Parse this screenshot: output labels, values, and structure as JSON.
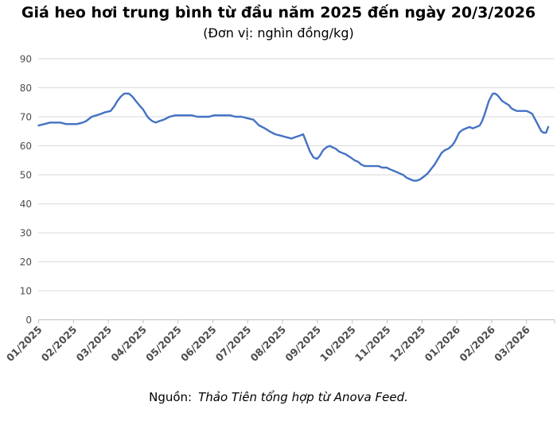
{
  "title": "Giá heo hơi trung bình từ đầu năm 2025 đến ngày 20/3/2026",
  "subtitle": "(Đơn vị: nghìn đồng/kg)",
  "source": {
    "prefix": "Nguồn:",
    "text": "Thảo Tiên tổng hợp từ Anova Feed."
  },
  "chart_data": {
    "type": "line",
    "series_name": "Giá heo hơi trung bình",
    "unit": "nghìn đồng/kg",
    "title": "Giá heo hơi trung bình từ đầu năm 2025 đến ngày 20/3/2026",
    "ylim": [
      0,
      90
    ],
    "grid": "horizontal",
    "legend": "none",
    "y_ticks": [
      0,
      10,
      20,
      30,
      40,
      50,
      60,
      70,
      80,
      90
    ],
    "x_tick_labels": [
      "01/2025",
      "02/2025",
      "03/2025",
      "04/2025",
      "05/2025",
      "06/2025",
      "07/2025",
      "08/2025",
      "09/2025",
      "10/2025",
      "11/2025",
      "12/2025",
      "01/2026",
      "02/2026",
      "03/2026"
    ],
    "line_color": "#4472C4",
    "gridline_color": "#D9D9D9",
    "axis_color": "#BFBFBF",
    "label_color": "#4d4d4d",
    "points": [
      [
        "2025-01-01",
        67
      ],
      [
        "2025-01-06",
        67.5
      ],
      [
        "2025-01-11",
        68
      ],
      [
        "2025-01-16",
        68
      ],
      [
        "2025-01-20",
        68
      ],
      [
        "2025-01-25",
        67.5
      ],
      [
        "2025-01-30",
        67.5
      ],
      [
        "2025-02-04",
        67.5
      ],
      [
        "2025-02-09",
        68
      ],
      [
        "2025-02-12",
        68.5
      ],
      [
        "2025-02-17",
        70
      ],
      [
        "2025-02-21",
        70.5
      ],
      [
        "2025-02-25",
        71
      ],
      [
        "2025-02-28",
        71.5
      ],
      [
        "2025-03-03",
        72
      ],
      [
        "2025-03-06",
        73.5
      ],
      [
        "2025-03-09",
        75.5
      ],
      [
        "2025-03-12",
        77
      ],
      [
        "2025-03-15",
        78
      ],
      [
        "2025-03-19",
        78
      ],
      [
        "2025-03-22",
        77
      ],
      [
        "2025-03-25",
        75.5
      ],
      [
        "2025-03-28",
        74
      ],
      [
        "2025-04-01",
        72.5
      ],
      [
        "2025-04-04",
        70.5
      ],
      [
        "2025-04-06",
        69.5
      ],
      [
        "2025-04-09",
        68.5
      ],
      [
        "2025-04-12",
        68
      ],
      [
        "2025-04-15",
        68.5
      ],
      [
        "2025-04-19",
        69
      ],
      [
        "2025-04-24",
        70
      ],
      [
        "2025-04-29",
        70.5
      ],
      [
        "2025-05-04",
        70.5
      ],
      [
        "2025-05-08",
        70.5
      ],
      [
        "2025-05-13",
        70.5
      ],
      [
        "2025-05-18",
        70
      ],
      [
        "2025-05-23",
        70
      ],
      [
        "2025-05-28",
        70
      ],
      [
        "2025-06-02",
        70.5
      ],
      [
        "2025-06-07",
        70.5
      ],
      [
        "2025-06-12",
        70.5
      ],
      [
        "2025-06-16",
        70.5
      ],
      [
        "2025-06-21",
        70
      ],
      [
        "2025-06-26",
        70
      ],
      [
        "2025-07-01",
        69.5
      ],
      [
        "2025-07-06",
        69
      ],
      [
        "2025-07-11",
        67
      ],
      [
        "2025-07-16",
        66
      ],
      [
        "2025-07-20",
        65
      ],
      [
        "2025-07-25",
        64
      ],
      [
        "2025-07-30",
        63.5
      ],
      [
        "2025-08-04",
        63
      ],
      [
        "2025-08-09",
        62.5
      ],
      [
        "2025-08-12",
        63
      ],
      [
        "2025-08-16",
        63.5
      ],
      [
        "2025-08-19",
        64
      ],
      [
        "2025-08-22",
        61
      ],
      [
        "2025-08-25",
        58
      ],
      [
        "2025-08-28",
        56
      ],
      [
        "2025-08-31",
        55.5
      ],
      [
        "2025-09-03",
        56.5
      ],
      [
        "2025-09-06",
        58.5
      ],
      [
        "2025-09-09",
        59.5
      ],
      [
        "2025-09-12",
        60
      ],
      [
        "2025-09-14",
        59.5
      ],
      [
        "2025-09-17",
        59
      ],
      [
        "2025-09-20",
        58
      ],
      [
        "2025-09-23",
        57.5
      ],
      [
        "2025-09-26",
        57
      ],
      [
        "2025-09-30",
        56
      ],
      [
        "2025-10-03",
        55
      ],
      [
        "2025-10-06",
        54.5
      ],
      [
        "2025-10-09",
        53.5
      ],
      [
        "2025-10-12",
        53
      ],
      [
        "2025-10-15",
        53
      ],
      [
        "2025-10-18",
        53
      ],
      [
        "2025-10-21",
        53
      ],
      [
        "2025-10-24",
        53
      ],
      [
        "2025-10-27",
        52.5
      ],
      [
        "2025-10-31",
        52.5
      ],
      [
        "2025-11-03",
        52
      ],
      [
        "2025-11-06",
        51.5
      ],
      [
        "2025-11-09",
        51
      ],
      [
        "2025-11-12",
        50.5
      ],
      [
        "2025-11-15",
        50
      ],
      [
        "2025-11-18",
        49
      ],
      [
        "2025-11-21",
        48.5
      ],
      [
        "2025-11-24",
        48
      ],
      [
        "2025-11-27",
        48
      ],
      [
        "2025-11-30",
        48.5
      ],
      [
        "2025-12-03",
        49.5
      ],
      [
        "2025-12-06",
        50.5
      ],
      [
        "2025-12-09",
        52
      ],
      [
        "2025-12-12",
        53.5
      ],
      [
        "2025-12-15",
        55.5
      ],
      [
        "2025-12-18",
        57.5
      ],
      [
        "2025-12-21",
        58.5
      ],
      [
        "2025-12-24",
        59
      ],
      [
        "2025-12-27",
        60
      ],
      [
        "2025-12-29",
        61
      ],
      [
        "2025-12-31",
        62.5
      ],
      [
        "2026-01-03",
        64.5
      ],
      [
        "2026-01-06",
        65.5
      ],
      [
        "2026-01-09",
        66
      ],
      [
        "2026-01-12",
        66.5
      ],
      [
        "2026-01-15",
        66
      ],
      [
        "2026-01-18",
        66.5
      ],
      [
        "2026-01-21",
        67
      ],
      [
        "2026-01-23",
        68.5
      ],
      [
        "2026-01-25",
        70.5
      ],
      [
        "2026-01-27",
        73
      ],
      [
        "2026-01-29",
        75.5
      ],
      [
        "2026-01-31",
        77
      ],
      [
        "2026-02-02",
        78
      ],
      [
        "2026-02-04",
        78
      ],
      [
        "2026-02-06",
        77.5
      ],
      [
        "2026-02-08",
        76.5
      ],
      [
        "2026-02-10",
        75.5
      ],
      [
        "2026-02-12",
        75
      ],
      [
        "2026-02-14",
        74.5
      ],
      [
        "2026-02-16",
        74
      ],
      [
        "2026-02-18",
        73
      ],
      [
        "2026-02-20",
        72.5
      ],
      [
        "2026-02-23",
        72
      ],
      [
        "2026-02-26",
        72
      ],
      [
        "2026-03-01",
        72
      ],
      [
        "2026-03-04",
        71.5
      ],
      [
        "2026-03-06",
        71
      ],
      [
        "2026-03-08",
        69.5
      ],
      [
        "2026-03-10",
        68
      ],
      [
        "2026-03-12",
        66.5
      ],
      [
        "2026-03-14",
        65
      ],
      [
        "2026-03-16",
        64.5
      ],
      [
        "2026-03-18",
        64.5
      ],
      [
        "2026-03-19",
        65.5
      ],
      [
        "2026-03-20",
        66.5
      ]
    ]
  }
}
